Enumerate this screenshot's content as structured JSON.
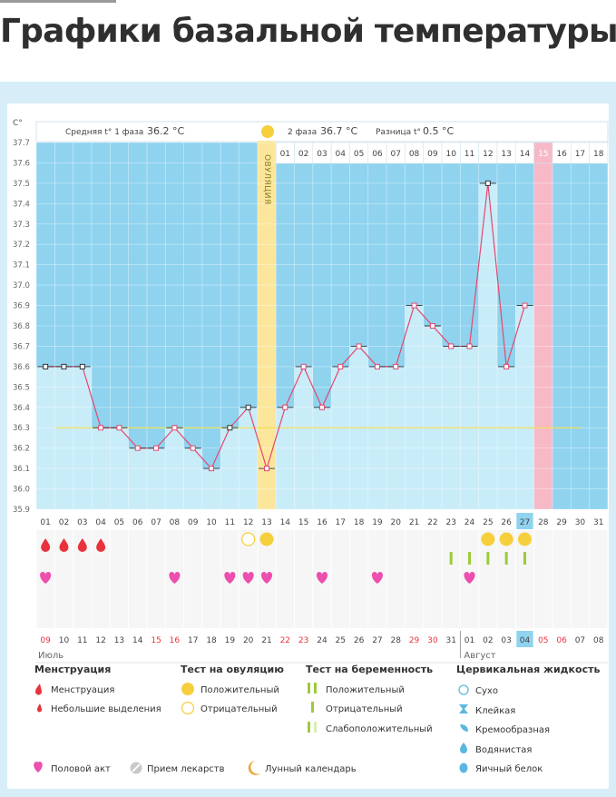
{
  "page": {
    "title": "Графики базальной температуры"
  },
  "header": {
    "unit": "С°",
    "phase1_label": "Средняя t° 1 фаза",
    "phase1_value": "36.2 °С",
    "phase2_label": "2 фаза",
    "phase2_value": "36.7 °С",
    "diff_label": "Разница t°",
    "diff_value": "0.5 °С",
    "ovulation_label": "ОВУЛЯЦИЯ"
  },
  "chart_data": {
    "type": "line",
    "title": "",
    "ylabel": "С°",
    "ylim": [
      35.9,
      37.7
    ],
    "yticks": [
      "35.9",
      "36.0",
      "36.1",
      "36.2",
      "36.3",
      "36.4",
      "36.5",
      "36.6",
      "36.7",
      "36.8",
      "36.9",
      "37.0",
      "37.1",
      "37.2",
      "37.3",
      "37.4",
      "37.5",
      "37.6",
      "37.7"
    ],
    "cycle_days": [
      "01",
      "02",
      "03",
      "04",
      "05",
      "06",
      "07",
      "08",
      "09",
      "10",
      "11",
      "12",
      "13",
      "14",
      "15",
      "16",
      "17",
      "18",
      "19",
      "20",
      "21",
      "22",
      "23",
      "24",
      "25",
      "26",
      "27",
      "28",
      "29",
      "30",
      "31"
    ],
    "post_ovulation_days": [
      "01",
      "02",
      "03",
      "04",
      "05",
      "06",
      "07",
      "08",
      "09",
      "10",
      "11",
      "12",
      "13",
      "14",
      "15",
      "16",
      "17",
      "18"
    ],
    "temperatures": [
      36.6,
      36.6,
      36.6,
      36.3,
      36.3,
      36.2,
      36.2,
      36.3,
      36.2,
      36.1,
      36.3,
      36.4,
      36.1,
      36.4,
      36.6,
      36.4,
      36.6,
      36.7,
      36.6,
      36.6,
      36.9,
      36.8,
      36.7,
      36.7,
      37.5,
      36.6,
      36.9
    ],
    "cover_line": 36.3,
    "ovulation_day": 13,
    "expected_period_day": 28,
    "today_day": 27,
    "calendar_dates": [
      "09",
      "10",
      "11",
      "12",
      "13",
      "14",
      "15",
      "16",
      "17",
      "18",
      "19",
      "20",
      "21",
      "22",
      "23",
      "24",
      "25",
      "26",
      "27",
      "28",
      "29",
      "30",
      "31",
      "01",
      "02",
      "03",
      "04",
      "05",
      "06",
      "07",
      "08"
    ],
    "weekend_dates": [
      0,
      6,
      7,
      13,
      14,
      20,
      21,
      27,
      28
    ],
    "highlight_date_index": 26,
    "months": [
      "Июль",
      "Август"
    ],
    "menstruation_days": [
      1,
      2,
      3,
      4
    ],
    "ovulation_tests": {
      "negative": [
        12
      ],
      "positive": [
        13
      ]
    },
    "pregnancy_tests_positive": [
      23,
      24,
      25,
      26,
      27
    ],
    "sex_days": [
      1,
      8,
      11,
      12,
      13,
      16,
      19,
      24
    ],
    "lunar_day": 16,
    "special_day_circles": [
      25,
      26,
      27
    ]
  },
  "legend": {
    "menstruation": {
      "title": "Менструация",
      "items": [
        "Менструация",
        "Небольшие выделения"
      ]
    },
    "ovulation_test": {
      "title": "Тест на овуляцию",
      "items": [
        "Положительный",
        "Отрицательный"
      ]
    },
    "pregnancy_test": {
      "title": "Тест на беременность",
      "items": [
        "Положительный",
        "Отрицательный",
        "Слабоположительный"
      ]
    },
    "cervical_fluid": {
      "title": "Цервикальная жидкость",
      "items": [
        "Сухо",
        "Клейкая",
        "Кремообразная",
        "Водянистая",
        "Яичный белок"
      ]
    },
    "bottom": [
      "Половой акт",
      "Прием лекарств",
      "Лунный календарь"
    ]
  },
  "colors": {
    "bg_blue": "#8fd3ef",
    "bar": "#c9ecf9",
    "line": "#e5486e",
    "ovulation": "#fbe69b",
    "period": "#f7b9c8",
    "drop": "#e8323c",
    "heart": "#ec4fae",
    "yellow": "#f6cf3c",
    "green": "#9ccb3b",
    "moon": "#f0a53a",
    "frame": "#d7eef9"
  }
}
